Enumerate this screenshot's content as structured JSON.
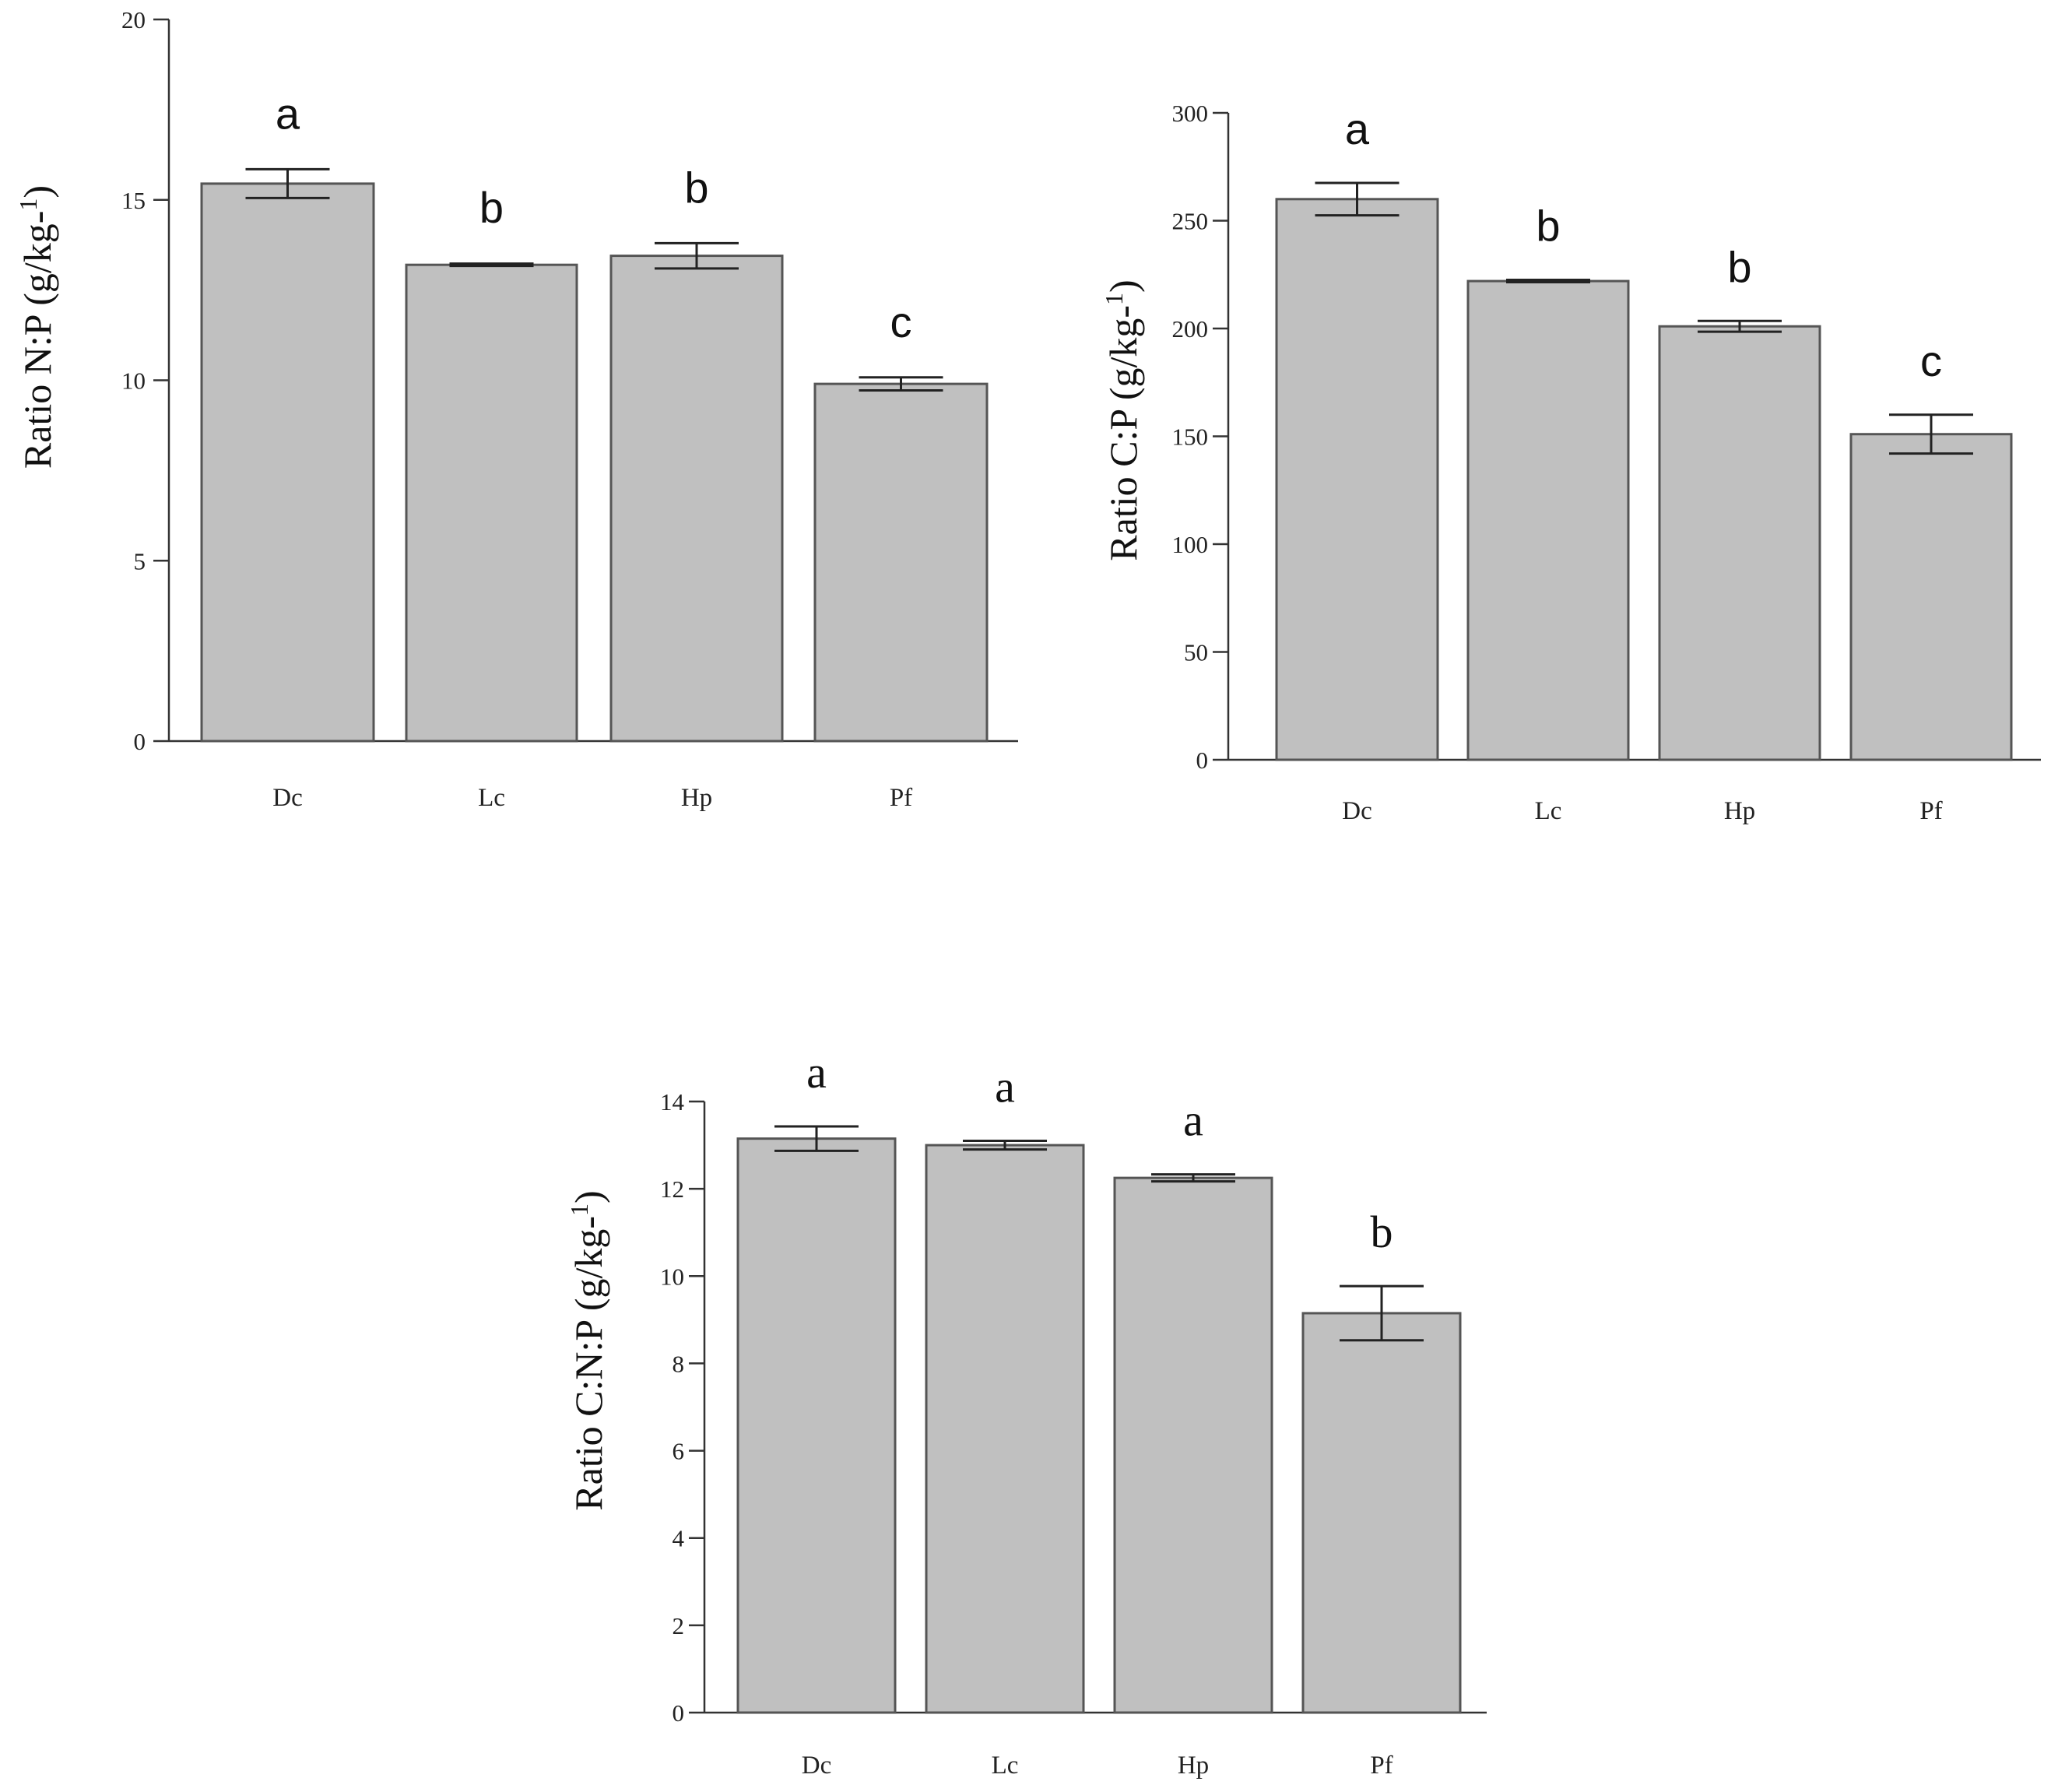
{
  "colors": {
    "bar_fill": "#c0c0c0",
    "bar_stroke": "#555555",
    "axis": "#333333",
    "error_bar": "#222222"
  },
  "chart_data": [
    {
      "type": "bar",
      "categories": [
        "Dc",
        "Lc",
        "Hp",
        "Pf"
      ],
      "values": [
        15.45,
        13.2,
        13.45,
        9.9
      ],
      "errors": [
        0.4,
        0.05,
        0.35,
        0.18
      ],
      "significance": [
        "a",
        "b",
        "b",
        "c"
      ],
      "ylabel": "Ratio N:P (g/kg-1)",
      "ylabel_parts": [
        "Ratio N:P (g/kg-",
        "1",
        ")"
      ],
      "ylim": [
        0,
        20
      ],
      "yticks": [
        0,
        5,
        10,
        15,
        20
      ],
      "grid": false
    },
    {
      "type": "bar",
      "categories": [
        "Dc",
        "Lc",
        "Hp",
        "Pf"
      ],
      "values": [
        260,
        222,
        201,
        151
      ],
      "errors": [
        7.5,
        0.5,
        2.5,
        9
      ],
      "significance": [
        "a",
        "b",
        "b",
        "c"
      ],
      "ylabel": "Ratio C:P (g/kg-1)",
      "ylabel_parts": [
        "Ratio C:P (g/kg-",
        "1",
        ")"
      ],
      "ylim": [
        0,
        300
      ],
      "yticks": [
        0,
        50,
        100,
        150,
        200,
        250,
        300
      ],
      "grid": false
    },
    {
      "type": "bar",
      "categories": [
        "Dc",
        "Lc",
        "Hp",
        "Pf"
      ],
      "values": [
        13.15,
        13.0,
        12.25,
        9.15
      ],
      "errors": [
        0.28,
        0.1,
        0.08,
        0.62
      ],
      "significance": [
        "a",
        "a",
        "a",
        "b"
      ],
      "ylabel": "Ratio C:N:P (g/kg-1)",
      "ylabel_parts": [
        "Ratio C:N:P (g/kg-",
        "1",
        ")"
      ],
      "ylim": [
        0,
        14
      ],
      "yticks": [
        0,
        2,
        4,
        6,
        8,
        10,
        12,
        14
      ],
      "grid": false
    }
  ]
}
